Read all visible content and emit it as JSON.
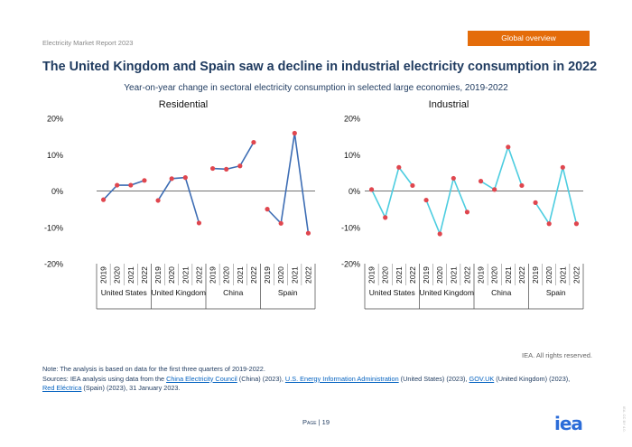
{
  "header": {
    "report_label": "Electricity Market Report 2023",
    "section_tab": "Global overview"
  },
  "title": "The United Kingdom and Spain saw a decline in industrial electricity consumption in 2022",
  "subtitle": "Year-on-year change in sectoral electricity consumption in selected large economies, 2019-2022",
  "chart_data": [
    {
      "type": "line",
      "title": "Residential",
      "line_color": "#3d6db4",
      "marker_color": "#e0464e",
      "ylim": [
        -20,
        20
      ],
      "yticks": [
        "20%",
        "10%",
        "0%",
        "-10%",
        "-20%"
      ],
      "years": [
        "2019",
        "2020",
        "2021",
        "2022"
      ],
      "series": [
        {
          "name": "United States",
          "values": [
            -2.4,
            1.6,
            1.6,
            2.9
          ]
        },
        {
          "name": "United Kingdom",
          "values": [
            -2.6,
            3.4,
            3.7,
            -8.8
          ]
        },
        {
          "name": "China",
          "values": [
            6.2,
            6.0,
            6.9,
            13.4
          ]
        },
        {
          "name": "Spain",
          "values": [
            -5.0,
            -8.9,
            15.9,
            -11.6
          ]
        }
      ]
    },
    {
      "type": "line",
      "title": "Industrial",
      "line_color": "#4dcde0",
      "marker_color": "#e0464e",
      "ylim": [
        -20,
        20
      ],
      "yticks": [
        "20%",
        "10%",
        "0%",
        "-10%",
        "-20%"
      ],
      "years": [
        "2019",
        "2020",
        "2021",
        "2022"
      ],
      "series": [
        {
          "name": "United States",
          "values": [
            0.4,
            -7.3,
            6.5,
            1.5
          ]
        },
        {
          "name": "United Kingdom",
          "values": [
            -2.5,
            -11.8,
            3.5,
            -5.8
          ]
        },
        {
          "name": "China",
          "values": [
            2.7,
            0.4,
            12.1,
            1.5
          ]
        },
        {
          "name": "Spain",
          "values": [
            -3.2,
            -9.0,
            6.5,
            -9.0
          ]
        }
      ]
    }
  ],
  "rights": "IEA. All rights reserved.",
  "note": {
    "line1": "Note: The analysis is based on data for the first three quarters of 2019-2022.",
    "sources_prefix": "Sources: IEA analysis using data from the ",
    "link_china": "China Electricity Council",
    "text_china": " (China) (2023), ",
    "link_us": "U.S. Energy Information Administration",
    "text_us": " (United States) (2023), ",
    "link_uk": "GOV.UK",
    "text_uk": " (United Kingdom) (2023),",
    "link_spain": "Red Eléctrica",
    "text_spain": " (Spain) (2023), 31 January 2023."
  },
  "footer": {
    "page_word": "Page",
    "page_sep": " | ",
    "page_number": "19",
    "logo": "iea",
    "side_mark": "IEA. CC BY 4.0."
  }
}
